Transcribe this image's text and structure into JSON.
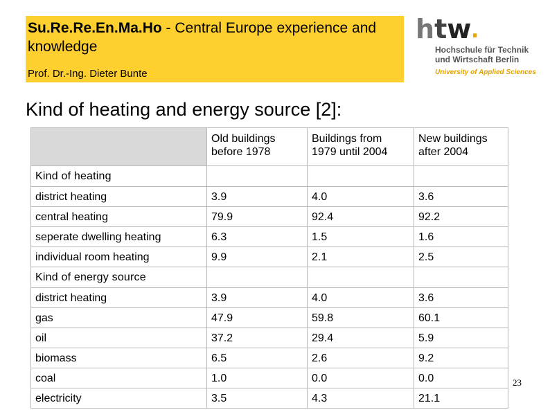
{
  "header": {
    "project": "Su.Re.Re.En.Ma.Ho",
    "title_rest": " - Central Europe experience and knowledge",
    "author": "Prof. Dr.-Ing. Dieter Bunte"
  },
  "logo": {
    "mark_letters": [
      "h",
      "t",
      "w"
    ],
    "line1": "Hochschule für Technik",
    "line2": "und Wirtschaft Berlin",
    "subline": "University of Applied Sciences"
  },
  "slide_title": "Kind of heating and energy source [2]:",
  "table": {
    "columns": [
      "Old buildings before 1978",
      "Buildings from 1979 until 2004",
      "New buildings after 2004"
    ],
    "section1": "Kind of heating",
    "rows1": [
      {
        "label": "district heating",
        "values": [
          "3.9",
          "4.0",
          "3.6"
        ]
      },
      {
        "label": "central heating",
        "values": [
          "79.9",
          "92.4",
          "92.2"
        ]
      },
      {
        "label": "seperate dwelling heating",
        "values": [
          "6.3",
          "1.5",
          "1.6"
        ]
      },
      {
        "label": "individual room heating",
        "values": [
          "9.9",
          "2.1",
          "2.5"
        ]
      }
    ],
    "section2": "Kind of energy source",
    "rows2": [
      {
        "label": "district heating",
        "values": [
          "3.9",
          "4.0",
          "3.6"
        ]
      },
      {
        "label": "gas",
        "values": [
          "47.9",
          "59.8",
          "60.1"
        ]
      },
      {
        "label": "oil",
        "values": [
          "37.2",
          "29.4",
          "5.9"
        ]
      },
      {
        "label": "biomass",
        "values": [
          "6.5",
          "2.6",
          "9.2"
        ]
      },
      {
        "label": "coal",
        "values": [
          "1.0",
          "0.0",
          "0.0"
        ]
      },
      {
        "label": "electricity",
        "values": [
          "3.5",
          "4.3",
          "21.1"
        ]
      }
    ]
  },
  "page_number": "23",
  "colors": {
    "header_bg": "#fed02f",
    "corner_bg": "#d9d9d9",
    "logo_accent": "#e0a400"
  }
}
